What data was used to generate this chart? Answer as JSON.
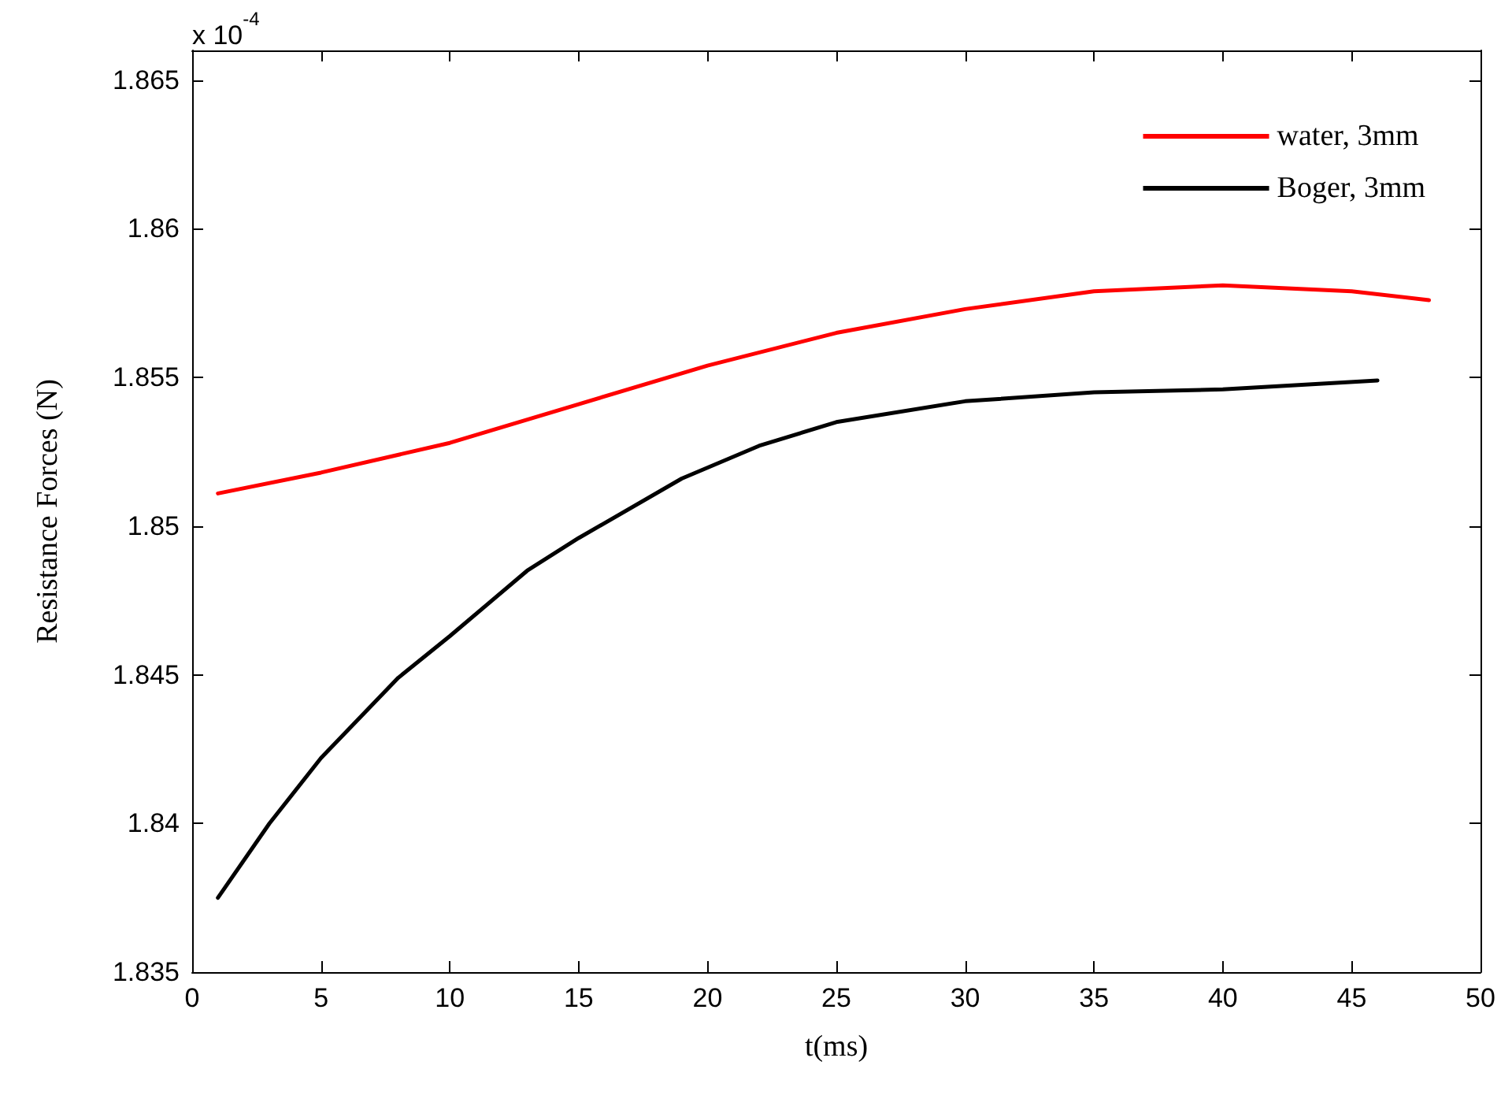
{
  "chart_data": {
    "type": "line",
    "xlabel": "t(ms)",
    "ylabel": "Resistance Forces (N)",
    "annotations": [
      "x 10$^{-4}$"
    ],
    "xlim": [
      0,
      50
    ],
    "xticks": [
      0,
      5,
      10,
      15,
      20,
      25,
      30,
      35,
      40,
      45,
      50
    ],
    "ylim": [
      1.835,
      1.866
    ],
    "yticks": [
      1.835,
      1.84,
      1.845,
      1.85,
      1.855,
      1.86,
      1.865
    ],
    "grid": false,
    "legend": "top right",
    "marker": "none",
    "line_style": "solid",
    "series": [
      {
        "name": "water, 3mm",
        "color": "#ff0000",
        "x": [
          1,
          5,
          10,
          15,
          20,
          25,
          30,
          35,
          40,
          45,
          48
        ],
        "values": [
          1.8511,
          1.8518,
          1.8528,
          1.8541,
          1.8554,
          1.8565,
          1.8573,
          1.8579,
          1.8581,
          1.8579,
          1.8576
        ]
      },
      {
        "name": "Boger, 3mm",
        "color": "#000000",
        "x": [
          1,
          3,
          5,
          8,
          10,
          13,
          15,
          19,
          22,
          25,
          30,
          35,
          40,
          46
        ],
        "values": [
          1.8375,
          1.84,
          1.8422,
          1.8449,
          1.8463,
          1.8485,
          1.8496,
          1.8516,
          1.8527,
          1.8535,
          1.8542,
          1.8545,
          1.8546,
          1.8549
        ]
      }
    ]
  }
}
